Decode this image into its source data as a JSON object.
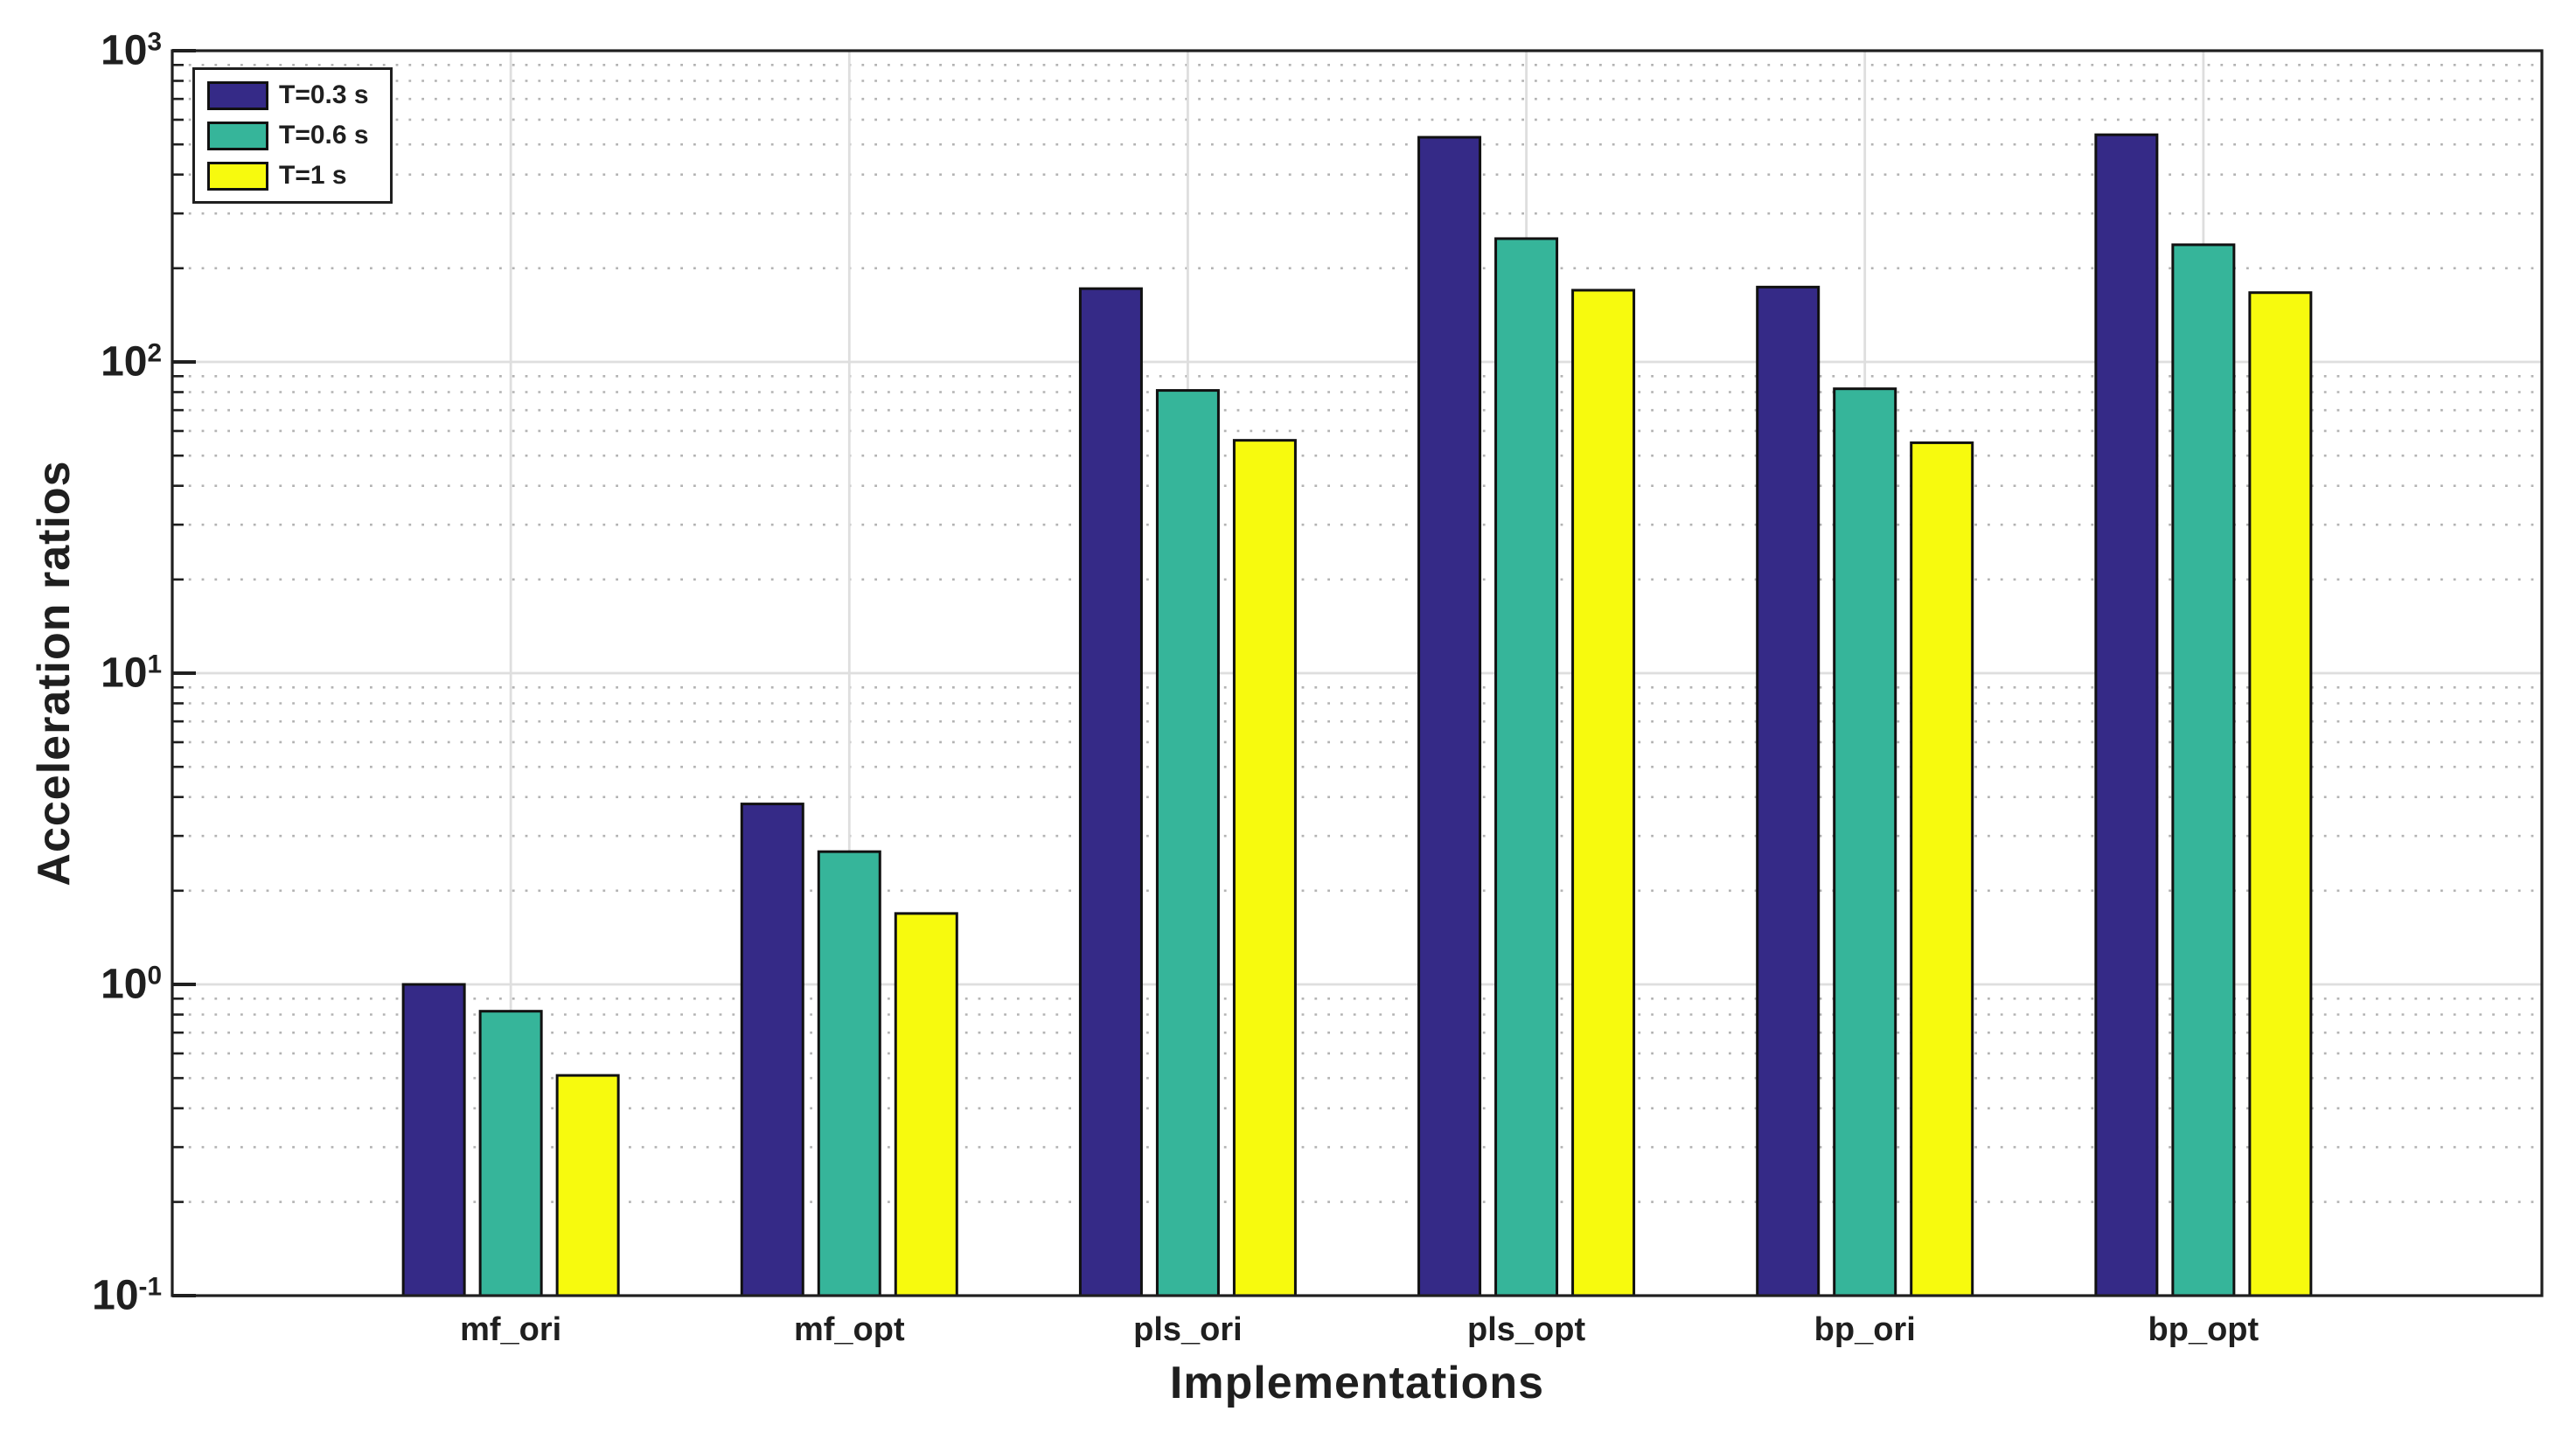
{
  "figure": {
    "background": "#ffffff",
    "text_color": "#1f1f1f"
  },
  "chart_data": {
    "type": "bar",
    "title": "",
    "xlabel": "Implementations",
    "ylabel": "Acceleration ratios",
    "y_scale": "log",
    "ylim": [
      0.1,
      1000
    ],
    "y_tick_exponents": [
      -1,
      0,
      1,
      2,
      3
    ],
    "y_tick_labels": [
      "10^-1",
      "10^0",
      "10^1",
      "10^2",
      "10^3"
    ],
    "grid": {
      "major_horizontal": true,
      "minor_horizontal_dotted": true,
      "vertical_at_categories": true
    },
    "legend_position": "top-left",
    "categories": [
      "mf_ori",
      "mf_opt",
      "pls_ori",
      "pls_opt",
      "bp_ori",
      "bp_opt"
    ],
    "series": [
      {
        "name": "T=0.3 s",
        "color": "#352A87",
        "values": [
          1.0,
          3.8,
          172,
          527,
          174,
          537
        ]
      },
      {
        "name": "T=0.6 s",
        "color": "#36B59A",
        "values": [
          0.82,
          2.67,
          81,
          249,
          82,
          238
        ]
      },
      {
        "name": "T=1 s",
        "color": "#F7FA0E",
        "values": [
          0.51,
          1.69,
          56,
          170,
          55,
          167
        ]
      }
    ],
    "bar_edge_color": "#111111",
    "major_grid_color": "#dedede",
    "minor_grid_color": "#b3b3b3",
    "axis_color": "#1f1f1f"
  }
}
